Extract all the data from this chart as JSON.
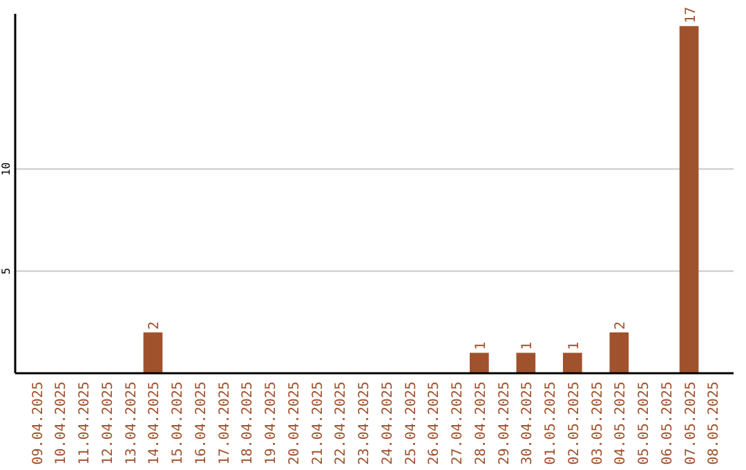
{
  "chart_data": {
    "type": "bar",
    "categories": [
      "09.04.2025",
      "10.04.2025",
      "11.04.2025",
      "12.04.2025",
      "13.04.2025",
      "14.04.2025",
      "15.04.2025",
      "16.04.2025",
      "17.04.2025",
      "18.04.2025",
      "19.04.2025",
      "20.04.2025",
      "21.04.2025",
      "22.04.2025",
      "23.04.2025",
      "24.04.2025",
      "25.04.2025",
      "26.04.2025",
      "27.04.2025",
      "28.04.2025",
      "29.04.2025",
      "30.04.2025",
      "01.05.2025",
      "02.05.2025",
      "03.05.2025",
      "04.05.2025",
      "05.05.2025",
      "06.05.2025",
      "07.05.2025",
      "08.05.2025"
    ],
    "values": [
      0,
      0,
      0,
      0,
      0,
      2,
      0,
      0,
      0,
      0,
      0,
      0,
      0,
      0,
      0,
      0,
      0,
      0,
      0,
      1,
      0,
      1,
      0,
      1,
      0,
      2,
      0,
      0,
      17,
      0
    ],
    "value_labels": [
      null,
      null,
      null,
      null,
      null,
      "2",
      null,
      null,
      null,
      null,
      null,
      null,
      null,
      null,
      null,
      null,
      null,
      null,
      null,
      "1",
      null,
      "1",
      null,
      "1",
      null,
      "2",
      null,
      null,
      "17",
      null
    ],
    "color": "#a0522d",
    "ylim": [
      0,
      17.6
    ],
    "yticks": [
      5,
      10
    ],
    "grid": "y"
  }
}
